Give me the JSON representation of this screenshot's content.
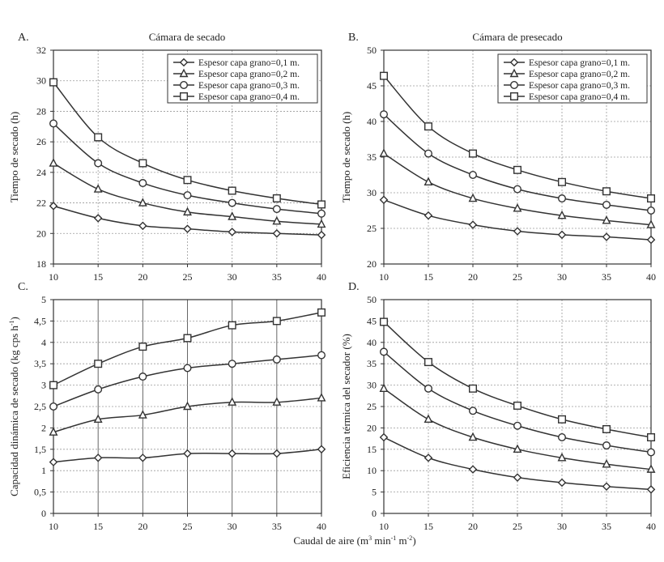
{
  "shared": {
    "xlabel": "Caudal de aire (m",
    "xlabel_sup1": "3",
    "xlabel_mid1": " min",
    "xlabel_sup2": "-1",
    "xlabel_mid2": " m",
    "xlabel_sup3": "-2",
    "xlabel_end": ")"
  },
  "chart_data": [
    {
      "id": "A",
      "letter": "A.",
      "type": "line",
      "title": "Cámara de secado",
      "ylabel": "Tiempo de secado (h)",
      "xlabel": "",
      "x": [
        10,
        15,
        20,
        25,
        30,
        35,
        40
      ],
      "xlim": [
        10,
        40
      ],
      "ylim": [
        18,
        32
      ],
      "yticks": [
        18,
        20,
        22,
        24,
        26,
        28,
        30,
        32
      ],
      "ytick_labels": [
        "18",
        "20",
        "22",
        "24",
        "26",
        "28",
        "30",
        "32"
      ],
      "xtick_labels": [
        "10",
        "15",
        "20",
        "25",
        "30",
        "35",
        "40"
      ],
      "grid": "dotted",
      "legend": "top-right",
      "series": [
        {
          "name": "Espesor capa grano=0,1 m.",
          "marker": "diamond",
          "values": [
            21.8,
            21.0,
            20.5,
            20.3,
            20.1,
            20.0,
            19.9
          ]
        },
        {
          "name": "Espesor capa grano=0,2 m.",
          "marker": "triangle",
          "values": [
            24.6,
            22.9,
            22.0,
            21.4,
            21.1,
            20.8,
            20.6
          ]
        },
        {
          "name": "Espesor capa grano=0,3 m.",
          "marker": "circle",
          "values": [
            27.2,
            24.6,
            23.3,
            22.5,
            22.0,
            21.6,
            21.3
          ]
        },
        {
          "name": "Espesor capa grano=0,4 m.",
          "marker": "square",
          "values": [
            29.9,
            26.3,
            24.6,
            23.5,
            22.8,
            22.3,
            21.9
          ]
        }
      ]
    },
    {
      "id": "B",
      "letter": "B.",
      "type": "line",
      "title": "Cámara de presecado",
      "ylabel": "Tiempo de secado (h)",
      "xlabel": "",
      "x": [
        10,
        15,
        20,
        25,
        30,
        35,
        40
      ],
      "xlim": [
        10,
        40
      ],
      "ylim": [
        20,
        50
      ],
      "yticks": [
        20,
        25,
        30,
        35,
        40,
        45,
        50
      ],
      "ytick_labels": [
        "20",
        "25",
        "30",
        "35",
        "40",
        "45",
        "50"
      ],
      "xtick_labels": [
        "10",
        "15",
        "20",
        "25",
        "30",
        "35",
        "40"
      ],
      "grid": "dotted",
      "legend": "top-right",
      "series": [
        {
          "name": "Espesor capa grano=0,1 m.",
          "marker": "diamond",
          "values": [
            29.0,
            26.8,
            25.5,
            24.6,
            24.1,
            23.8,
            23.4
          ]
        },
        {
          "name": "Espesor capa grano=0,2 m.",
          "marker": "triangle",
          "values": [
            35.5,
            31.5,
            29.2,
            27.8,
            26.8,
            26.1,
            25.5
          ]
        },
        {
          "name": "Espesor capa grano=0,3 m.",
          "marker": "circle",
          "values": [
            41.0,
            35.5,
            32.5,
            30.5,
            29.2,
            28.3,
            27.5
          ]
        },
        {
          "name": "Espesor capa grano=0,4 m.",
          "marker": "square",
          "values": [
            46.4,
            39.3,
            35.5,
            33.2,
            31.5,
            30.2,
            29.2
          ]
        }
      ]
    },
    {
      "id": "C",
      "letter": "C.",
      "type": "line",
      "title": "",
      "ylabel": "Capacidad dinámica de secado (kg cps h",
      "ylabel_sup": "-1",
      "ylabel_end": ")",
      "xlabel": "",
      "x": [
        10,
        15,
        20,
        25,
        30,
        35,
        40
      ],
      "xlim": [
        10,
        40
      ],
      "ylim": [
        0,
        5
      ],
      "yticks": [
        0,
        0.5,
        1,
        1.5,
        2,
        2.5,
        3,
        3.5,
        4,
        4.5,
        5
      ],
      "ytick_labels": [
        "0",
        "0,5",
        "1",
        "1,5",
        "2",
        "2,5",
        "3",
        "3,5",
        "4",
        "4,5",
        "5"
      ],
      "xtick_labels": [
        "10",
        "15",
        "20",
        "25",
        "30",
        "35",
        "40"
      ],
      "grid": "solid",
      "legend": "none",
      "series": [
        {
          "name": "Espesor capa grano=0,1 m.",
          "marker": "diamond",
          "values": [
            1.2,
            1.3,
            1.3,
            1.4,
            1.4,
            1.4,
            1.5
          ]
        },
        {
          "name": "Espesor capa grano=0,2 m.",
          "marker": "triangle",
          "values": [
            1.9,
            2.2,
            2.3,
            2.5,
            2.6,
            2.6,
            2.7
          ]
        },
        {
          "name": "Espesor capa grano=0,3 m.",
          "marker": "circle",
          "values": [
            2.5,
            2.9,
            3.2,
            3.4,
            3.5,
            3.6,
            3.7
          ]
        },
        {
          "name": "Espesor capa grano=0,4 m.",
          "marker": "square",
          "values": [
            3.0,
            3.5,
            3.9,
            4.1,
            4.4,
            4.5,
            4.7
          ]
        }
      ]
    },
    {
      "id": "D",
      "letter": "D.",
      "type": "line",
      "title": "",
      "ylabel": "Eficiencia térmica del secador (%)",
      "xlabel": "",
      "x": [
        10,
        15,
        20,
        25,
        30,
        35,
        40
      ],
      "xlim": [
        10,
        40
      ],
      "ylim": [
        0,
        50
      ],
      "yticks": [
        0,
        5,
        10,
        15,
        20,
        25,
        30,
        35,
        40,
        45,
        50
      ],
      "ytick_labels": [
        "0",
        "5",
        "10",
        "15",
        "20",
        "25",
        "30",
        "35",
        "40",
        "45",
        "50"
      ],
      "xtick_labels": [
        "10",
        "15",
        "20",
        "25",
        "30",
        "35",
        "40"
      ],
      "grid": "dotted",
      "legend": "none",
      "series": [
        {
          "name": "Espesor capa grano=0,1 m.",
          "marker": "diamond",
          "values": [
            17.8,
            13.0,
            10.3,
            8.4,
            7.2,
            6.3,
            5.6
          ]
        },
        {
          "name": "Espesor capa grano=0,2 m.",
          "marker": "triangle",
          "values": [
            29.2,
            22.0,
            17.8,
            15.0,
            13.0,
            11.5,
            10.3
          ]
        },
        {
          "name": "Espesor capa grano=0,3 m.",
          "marker": "circle",
          "values": [
            37.8,
            29.2,
            24.0,
            20.5,
            17.8,
            15.9,
            14.3
          ]
        },
        {
          "name": "Espesor capa grano=0,4 m.",
          "marker": "square",
          "values": [
            44.8,
            35.4,
            29.2,
            25.2,
            22.0,
            19.7,
            17.8
          ]
        }
      ]
    }
  ]
}
